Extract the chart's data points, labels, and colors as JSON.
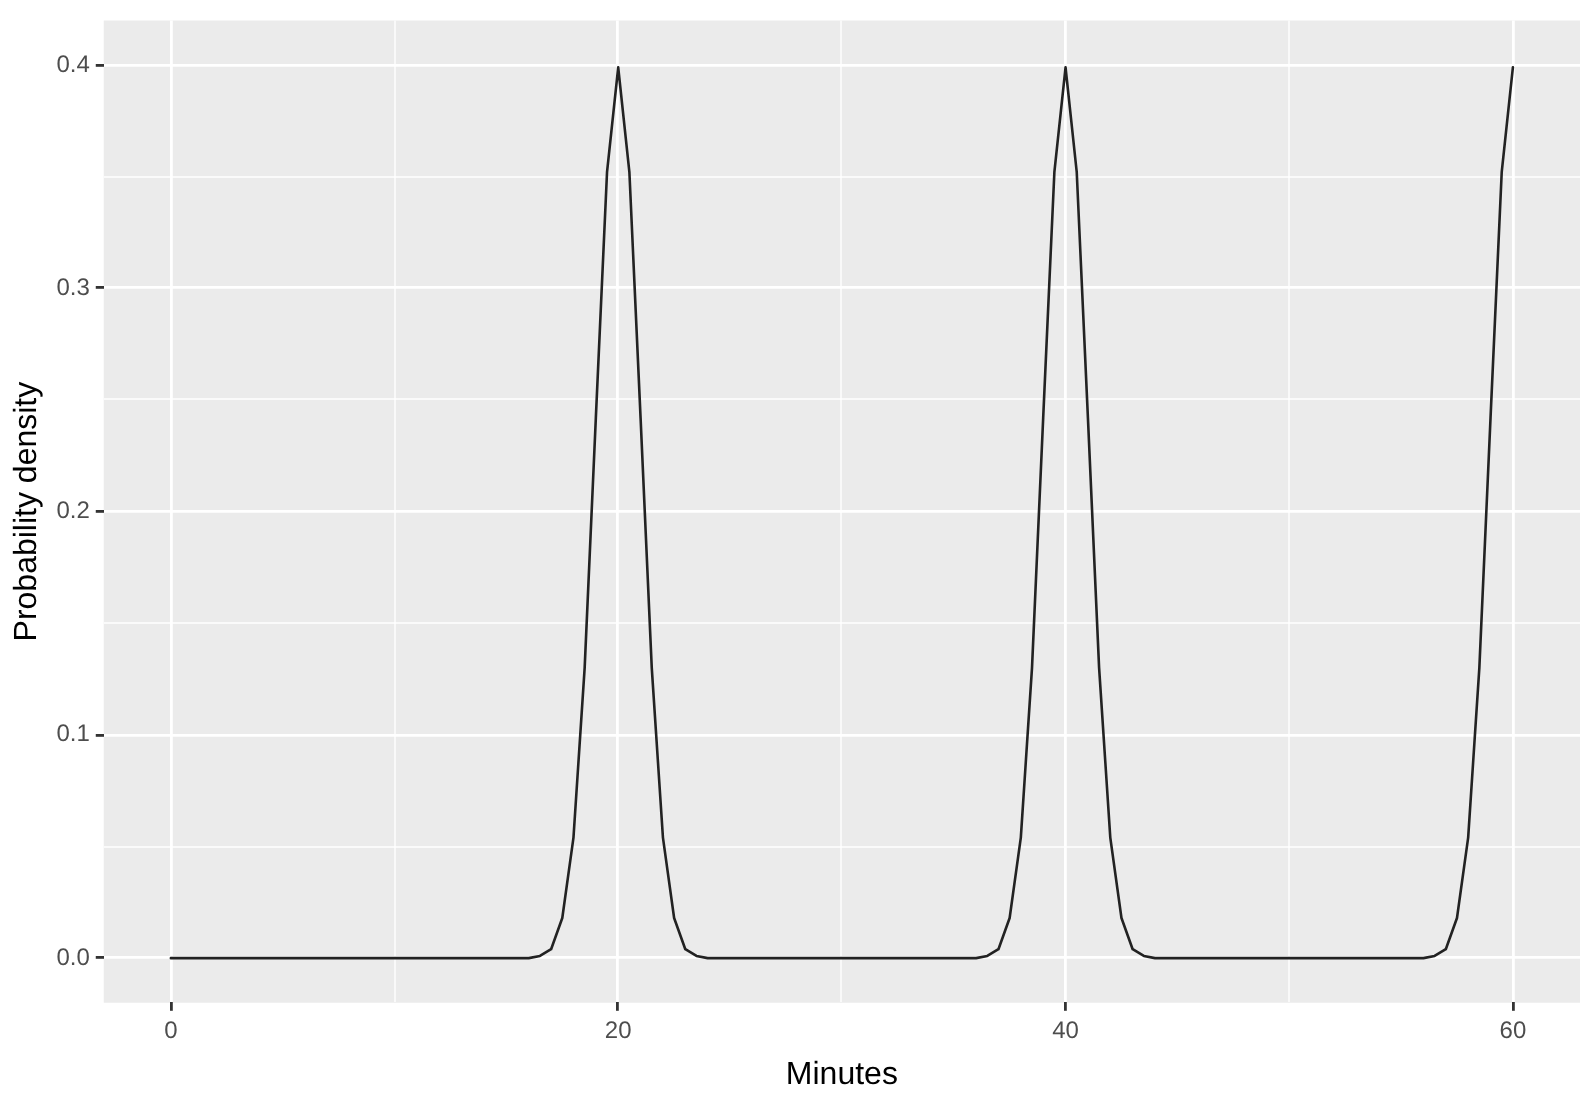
{
  "chart_data": {
    "type": "line",
    "xlabel": "Minutes",
    "ylabel": "Probability density",
    "x": [
      0,
      16,
      16.5,
      17,
      17.5,
      18,
      18.5,
      19,
      19.5,
      20,
      20.5,
      21,
      21.5,
      22,
      22.5,
      23,
      23.5,
      24,
      36,
      36.5,
      37,
      37.5,
      38,
      38.5,
      39,
      39.5,
      40,
      40.5,
      41,
      41.5,
      42,
      42.5,
      43,
      43.5,
      44,
      56,
      56.5,
      57,
      57.5,
      58,
      58.5,
      59,
      59.5,
      60
    ],
    "series": [
      {
        "color": "#222222",
        "values": [
          0,
          0,
          0.001,
          0.004,
          0.018,
          0.054,
          0.13,
          0.242,
          0.352,
          0.399,
          0.352,
          0.242,
          0.13,
          0.054,
          0.018,
          0.004,
          0.001,
          0,
          0,
          0.001,
          0.004,
          0.018,
          0.054,
          0.13,
          0.242,
          0.352,
          0.399,
          0.352,
          0.242,
          0.13,
          0.054,
          0.018,
          0.004,
          0.001,
          0,
          0,
          0.001,
          0.004,
          0.018,
          0.054,
          0.13,
          0.242,
          0.352,
          0.399
        ]
      }
    ],
    "xlim": [
      -3,
      63
    ],
    "ylim": [
      -0.02,
      0.42
    ],
    "xticks": [
      0,
      {
        "value": 10,
        "label": null
      },
      20,
      {
        "value": 30,
        "label": null
      },
      40,
      {
        "value": 50,
        "label": null
      },
      60
    ],
    "yticks": [
      {
        "value": 0,
        "label": "0.0"
      },
      {
        "value": 0.05,
        "label": null
      },
      {
        "value": 0.1,
        "label": "0.1"
      },
      {
        "value": 0.15,
        "label": null
      },
      {
        "value": 0.2,
        "label": "0.2"
      },
      {
        "value": 0.25,
        "label": null
      },
      {
        "value": 0.3,
        "label": "0.3"
      },
      {
        "value": 0.35,
        "label": null
      },
      {
        "value": 0.4,
        "label": "0.4"
      }
    ],
    "grid": true,
    "legend": false,
    "marker": "none",
    "line_style": "solid"
  }
}
